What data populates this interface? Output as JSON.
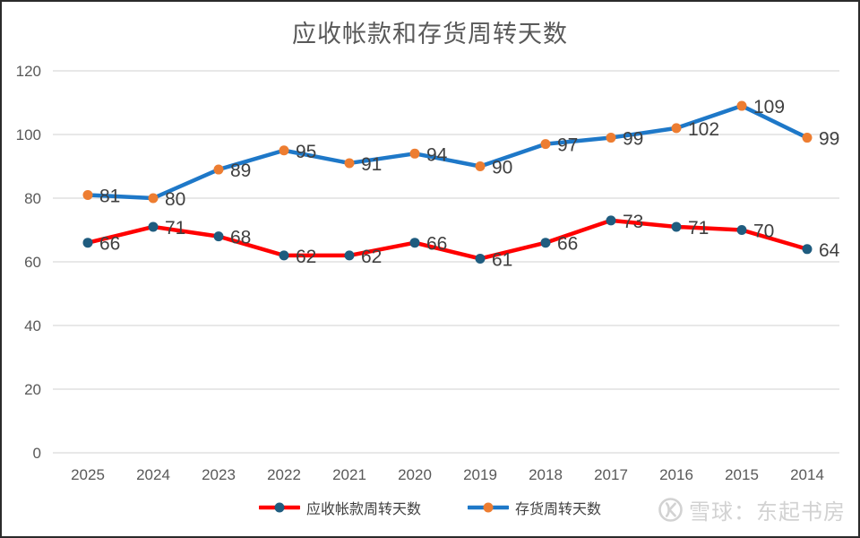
{
  "title": "应收帐款和存货周转天数",
  "chart_data": {
    "type": "line",
    "categories": [
      "2025",
      "2024",
      "2023",
      "2022",
      "2021",
      "2020",
      "2019",
      "2018",
      "2017",
      "2016",
      "2015",
      "2014"
    ],
    "series": [
      {
        "name": "应收帐款周转天数",
        "values": [
          66,
          71,
          68,
          62,
          62,
          66,
          61,
          66,
          73,
          71,
          70,
          64
        ],
        "line_color": "#FF0000",
        "marker_color": "#1F5C7F"
      },
      {
        "name": "存货周转天数",
        "values": [
          81,
          80,
          89,
          95,
          91,
          94,
          90,
          97,
          99,
          102,
          109,
          99
        ],
        "line_color": "#1E78C8",
        "marker_color": "#ED7D31"
      }
    ],
    "ylim": [
      0,
      120
    ],
    "yticks": [
      0,
      20,
      40,
      60,
      80,
      100,
      120
    ],
    "grid": "horizontal",
    "legend_position": "bottom",
    "data_labels": true,
    "label_color": "#404040",
    "axis_color": "#595959",
    "grid_color": "#D9D9D9"
  },
  "legend": {
    "items": [
      {
        "label": "应收帐款周转天数"
      },
      {
        "label": "存货周转天数"
      }
    ]
  },
  "watermark": {
    "text": "雪球：东起书房",
    "logo": "xueqiu-logo",
    "color": "#d2d2d2"
  }
}
